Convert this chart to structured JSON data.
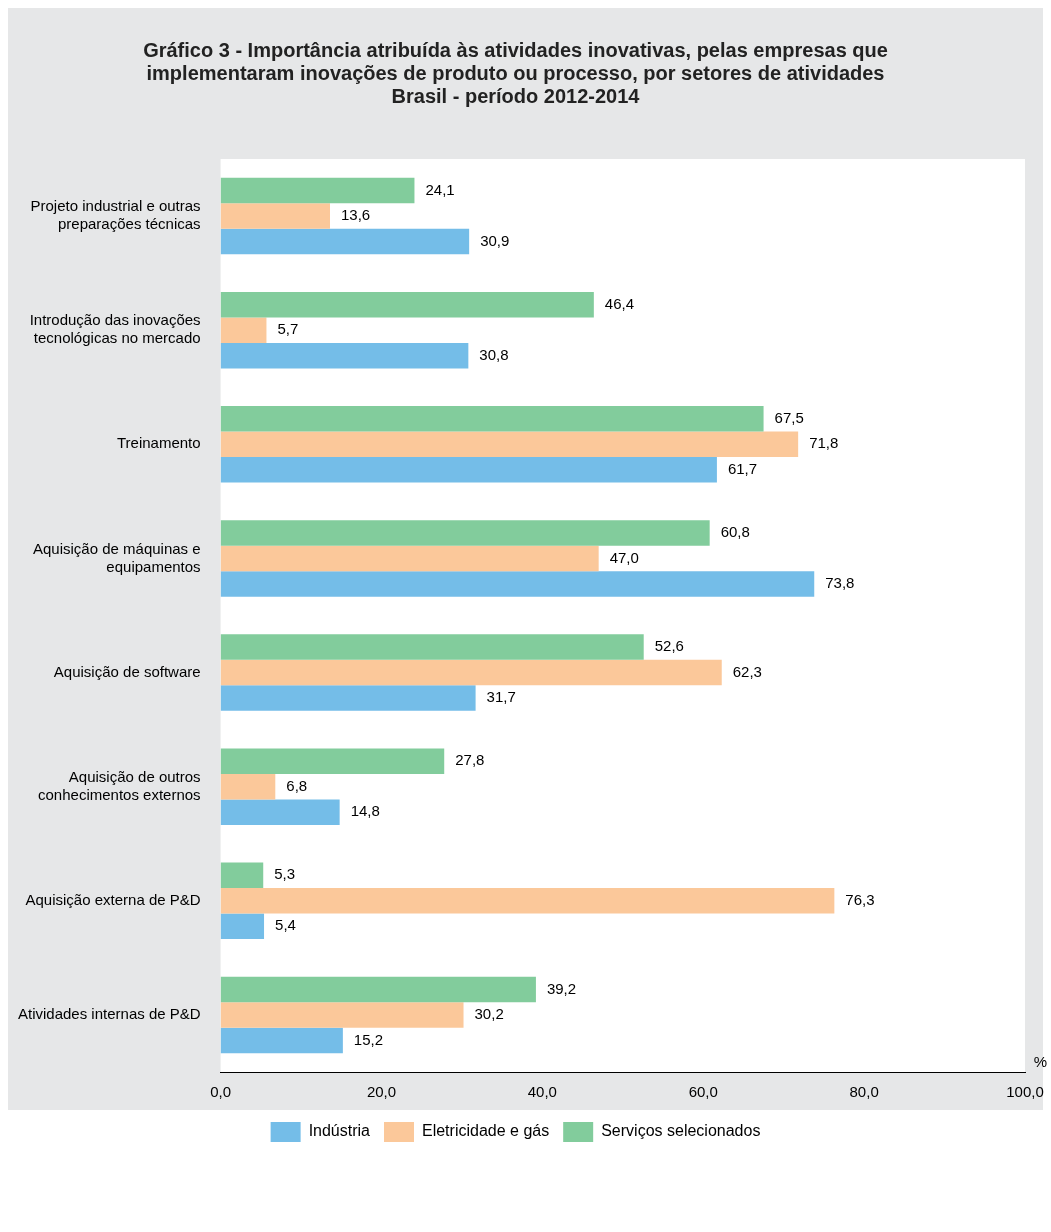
{
  "chart_data": {
    "type": "bar",
    "orientation": "horizontal",
    "title": "Gráfico 3 - Importância atribuída às atividades inovativas, pelas empresas que\nimplementaram inovações de produto ou processo, por setores de atividades\nBrasil - período 2012-2014",
    "xlabel": "%",
    "categories": [
      "Projeto industrial e outras preparações técnicas",
      "Introdução das inovações tecnológicas no mercado",
      "Treinamento",
      "Aquisição de máquinas e equipamentos",
      "Aquisição de software",
      "Aquisição de outros conhecimentos externos",
      "Aquisição externa de P&D",
      "Atividades internas de P&D"
    ],
    "series": [
      {
        "name": "Indústria",
        "color": "#74bde8",
        "values": [
          30.9,
          30.8,
          61.7,
          73.8,
          31.7,
          14.8,
          5.4,
          15.2
        ],
        "value_labels": [
          "30,9",
          "30,8",
          "61,7",
          "73,8",
          "31,7",
          "14,8",
          "5,4",
          "15,2"
        ]
      },
      {
        "name": "Eletricidade e gás",
        "color": "#fbc89a",
        "values": [
          13.6,
          5.7,
          71.8,
          47.0,
          62.3,
          6.8,
          76.3,
          30.2
        ],
        "value_labels": [
          "13,6",
          "5,7",
          "71,8",
          "47,0",
          "62,3",
          "6,8",
          "76,3",
          "30,2"
        ]
      },
      {
        "name": "Serviços selecionados",
        "color": "#82cc9c",
        "values": [
          24.1,
          46.4,
          67.5,
          60.8,
          52.6,
          27.8,
          5.3,
          39.2
        ],
        "value_labels": [
          "24,1",
          "46,4",
          "67,5",
          "60,8",
          "52,6",
          "27,8",
          "5,3",
          "39,2"
        ]
      }
    ],
    "xlim": [
      0,
      100
    ],
    "xticks": [
      {
        "value": 0,
        "label": "0,0"
      },
      {
        "value": 20,
        "label": "20,0"
      },
      {
        "value": 40,
        "label": "40,0"
      },
      {
        "value": 60,
        "label": "60,0"
      },
      {
        "value": 80,
        "label": "80,0"
      },
      {
        "value": 100,
        "label": "100,0"
      }
    ],
    "legend": "bottom"
  }
}
